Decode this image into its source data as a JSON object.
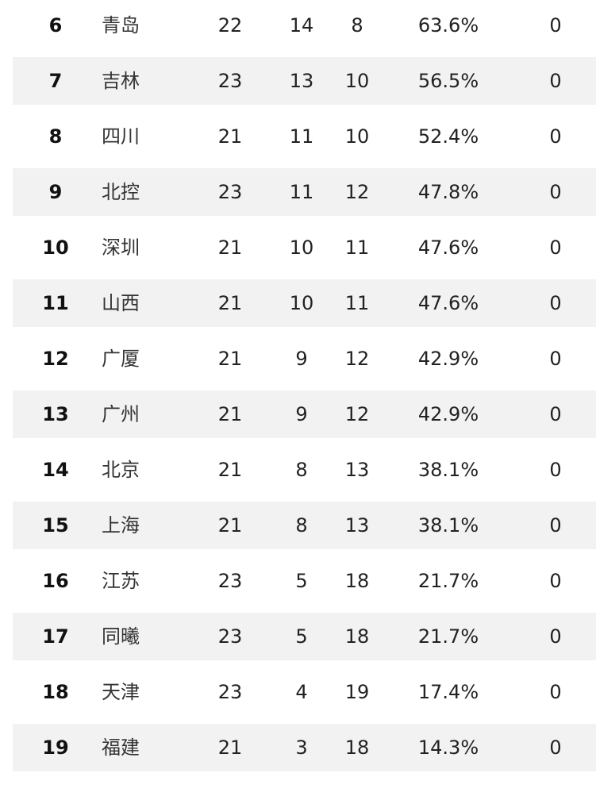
{
  "standings": {
    "rows": [
      {
        "rank": "6",
        "team": "青岛",
        "games": "22",
        "wins": "14",
        "losses": "8",
        "pct": "63.6%",
        "gb": "0"
      },
      {
        "rank": "7",
        "team": "吉林",
        "games": "23",
        "wins": "13",
        "losses": "10",
        "pct": "56.5%",
        "gb": "0"
      },
      {
        "rank": "8",
        "team": "四川",
        "games": "21",
        "wins": "11",
        "losses": "10",
        "pct": "52.4%",
        "gb": "0"
      },
      {
        "rank": "9",
        "team": "北控",
        "games": "23",
        "wins": "11",
        "losses": "12",
        "pct": "47.8%",
        "gb": "0"
      },
      {
        "rank": "10",
        "team": "深圳",
        "games": "21",
        "wins": "10",
        "losses": "11",
        "pct": "47.6%",
        "gb": "0"
      },
      {
        "rank": "11",
        "team": "山西",
        "games": "21",
        "wins": "10",
        "losses": "11",
        "pct": "47.6%",
        "gb": "0"
      },
      {
        "rank": "12",
        "team": "广厦",
        "games": "21",
        "wins": "9",
        "losses": "12",
        "pct": "42.9%",
        "gb": "0"
      },
      {
        "rank": "13",
        "team": "广州",
        "games": "21",
        "wins": "9",
        "losses": "12",
        "pct": "42.9%",
        "gb": "0"
      },
      {
        "rank": "14",
        "team": "北京",
        "games": "21",
        "wins": "8",
        "losses": "13",
        "pct": "38.1%",
        "gb": "0"
      },
      {
        "rank": "15",
        "team": "上海",
        "games": "21",
        "wins": "8",
        "losses": "13",
        "pct": "38.1%",
        "gb": "0"
      },
      {
        "rank": "16",
        "team": "江苏",
        "games": "23",
        "wins": "5",
        "losses": "18",
        "pct": "21.7%",
        "gb": "0"
      },
      {
        "rank": "17",
        "team": "同曦",
        "games": "23",
        "wins": "5",
        "losses": "18",
        "pct": "21.7%",
        "gb": "0"
      },
      {
        "rank": "18",
        "team": "天津",
        "games": "23",
        "wins": "4",
        "losses": "19",
        "pct": "17.4%",
        "gb": "0"
      },
      {
        "rank": "19",
        "team": "福建",
        "games": "21",
        "wins": "3",
        "losses": "18",
        "pct": "14.3%",
        "gb": "0"
      }
    ]
  }
}
